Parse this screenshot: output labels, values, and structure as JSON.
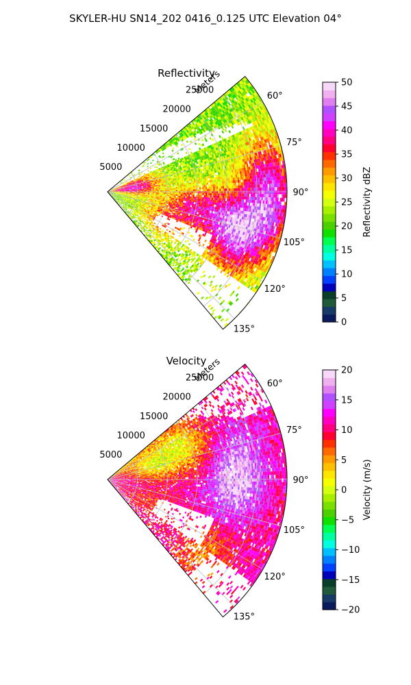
{
  "figure": {
    "suptitle": "SKYLER-HU  SN14_202  0416_0.125 UTC Elevation 04°"
  },
  "colors": {
    "grid": "#bdbdbd",
    "reflectivity_scale": [
      "#0b1a5c",
      "#173a66",
      "#1f5a3a",
      "#0a3d2a",
      "#0000b8",
      "#0040ff",
      "#0080ff",
      "#00c0ff",
      "#00ffe0",
      "#00ffa0",
      "#00ff50",
      "#10e000",
      "#4cd000",
      "#7ae000",
      "#a8f000",
      "#d4ff10",
      "#f4ff00",
      "#ffe600",
      "#ffc000",
      "#ff9a00",
      "#ff6a00",
      "#ff3000",
      "#ff0030",
      "#ff0080",
      "#ff00c0",
      "#ff00ff",
      "#d040ff",
      "#b050ff",
      "#e080f0",
      "#f0b0f0",
      "#f8d8f8"
    ],
    "velocity_scale": [
      "#0b1a5c",
      "#173a66",
      "#1f5a3a",
      "#0a3d2a",
      "#0000b8",
      "#0040ff",
      "#0080ff",
      "#00c0ff",
      "#00ffe0",
      "#00ffa0",
      "#00ff50",
      "#10e000",
      "#4cd000",
      "#7ae000",
      "#a8f000",
      "#d4ff10",
      "#f4ff00",
      "#ffe600",
      "#ffc000",
      "#ff9a00",
      "#ff6a00",
      "#ff3000",
      "#ff0030",
      "#ff0080",
      "#ff00c0",
      "#ff00ff",
      "#d040ff",
      "#b050ff",
      "#e080f0",
      "#f0b0f0",
      "#f8d8f8"
    ]
  },
  "chart_data": [
    {
      "type": "polar-sector",
      "title": "Reflectivity",
      "radial_label": "Meters",
      "azimuth_range_deg": [
        50,
        140
      ],
      "radial_range_m": [
        0,
        30000
      ],
      "radial_ticks": [
        5000,
        10000,
        15000,
        20000,
        25000
      ],
      "radial_tick_labels": [
        "5000",
        "10000",
        "15000",
        "20000",
        "25000"
      ],
      "azimuth_ticks": [
        60,
        75,
        90,
        105,
        120,
        135
      ],
      "azimuth_tick_labels": [
        "60°",
        "75°",
        "90°",
        "105°",
        "120°",
        "135°"
      ],
      "grid": true,
      "colorbar": {
        "label": "Reflectivity dBZ",
        "range": [
          0,
          50
        ],
        "ticks": [
          0,
          5,
          10,
          15,
          20,
          25,
          30,
          35,
          40,
          45,
          50
        ],
        "tick_labels": [
          "0",
          "5",
          "10",
          "15",
          "20",
          "25",
          "30",
          "35",
          "40",
          "45",
          "50"
        ]
      },
      "field": {
        "base_value": 22,
        "cores": [
          {
            "az": 82,
            "r": 27000,
            "value": 34
          },
          {
            "az": 98,
            "r": 27500,
            "value": 36
          },
          {
            "az": 112,
            "r": 24000,
            "value": 33
          },
          {
            "az": 80,
            "r": 4200,
            "value": 41
          },
          {
            "az": 100,
            "r": 14500,
            "value": 36
          },
          {
            "az": 118,
            "r": 10000,
            "value": 32
          },
          {
            "az": 104,
            "r": 21000,
            "value": 38
          }
        ]
      }
    },
    {
      "type": "polar-sector",
      "title": "Velocity",
      "radial_label": "Meters",
      "azimuth_range_deg": [
        50,
        140
      ],
      "radial_range_m": [
        0,
        30000
      ],
      "radial_ticks": [
        5000,
        10000,
        15000,
        20000,
        25000
      ],
      "radial_tick_labels": [
        "5000",
        "10000",
        "15000",
        "20000",
        "25000"
      ],
      "azimuth_ticks": [
        60,
        75,
        90,
        105,
        120,
        135
      ],
      "azimuth_tick_labels": [
        "60°",
        "75°",
        "90°",
        "105°",
        "120°",
        "135°"
      ],
      "grid": true,
      "colorbar": {
        "label": "Velocity (m/s)",
        "range": [
          -20,
          20
        ],
        "ticks": [
          -20,
          -15,
          -10,
          -5,
          0,
          5,
          10,
          15,
          20
        ],
        "tick_labels": [
          "−20",
          "−15",
          "−10",
          "−5",
          "0",
          "5",
          "10",
          "15",
          "20"
        ]
      },
      "field": {
        "base_value": 11,
        "cores": [
          {
            "az": 82,
            "r": 22000,
            "value": 16
          },
          {
            "az": 96,
            "r": 21000,
            "value": 16
          },
          {
            "az": 74,
            "r": 8000,
            "value": 2
          },
          {
            "az": 66,
            "r": 14000,
            "value": 3
          },
          {
            "az": 128,
            "r": 20000,
            "value": 6
          },
          {
            "az": 120,
            "r": 8000,
            "value": 8
          }
        ]
      }
    }
  ]
}
